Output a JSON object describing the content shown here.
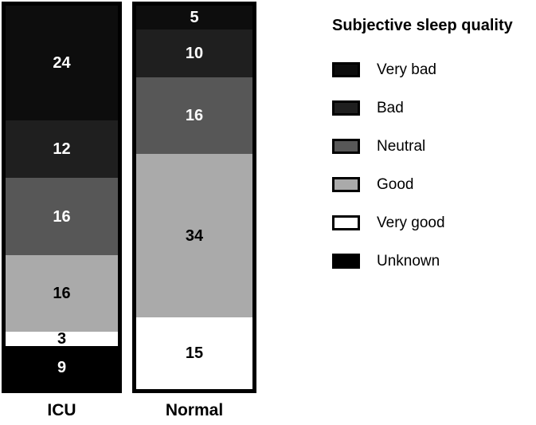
{
  "chart_data": {
    "type": "bar",
    "variant": "stacked-vertical",
    "title": "Subjective sleep quality",
    "categories": [
      "ICU",
      "Normal"
    ],
    "totals": [
      80,
      80
    ],
    "stack_order_top_to_bottom": [
      "Very bad",
      "Bad",
      "Neutral",
      "Good",
      "Very good",
      "Unknown"
    ],
    "series": [
      {
        "name": "Very bad",
        "color": "#0d0d0d",
        "label_color": "#ffffff",
        "values": [
          24,
          5
        ]
      },
      {
        "name": "Bad",
        "color": "#1f1f1f",
        "label_color": "#ffffff",
        "values": [
          12,
          10
        ]
      },
      {
        "name": "Neutral",
        "color": "#575757",
        "label_color": "#ffffff",
        "values": [
          16,
          16
        ]
      },
      {
        "name": "Good",
        "color": "#aaaaaa",
        "label_color": "#000000",
        "values": [
          16,
          34
        ]
      },
      {
        "name": "Very good",
        "color": "#ffffff",
        "label_color": "#000000",
        "values": [
          3,
          15
        ]
      },
      {
        "name": "Unknown",
        "color": "#000000",
        "label_color": "#ffffff",
        "values": [
          9,
          0
        ]
      }
    ],
    "bar_border_color": "#000000",
    "background_color": "#ffffff",
    "legend_position": "right",
    "grid": false
  },
  "legend": {
    "title": "Subjective sleep quality",
    "items": [
      {
        "label": "Very bad",
        "color": "#0d0d0d",
        "extra_gap": false
      },
      {
        "label": "Bad",
        "color": "#1f1f1f",
        "extra_gap": false
      },
      {
        "label": "Neutral",
        "color": "#575757",
        "extra_gap": false
      },
      {
        "label": "Good",
        "color": "#aaaaaa",
        "extra_gap": false
      },
      {
        "label": "Very good",
        "color": "#ffffff",
        "extra_gap": false
      },
      {
        "label": "Unknown",
        "color": "#000000",
        "extra_gap": true
      }
    ]
  }
}
